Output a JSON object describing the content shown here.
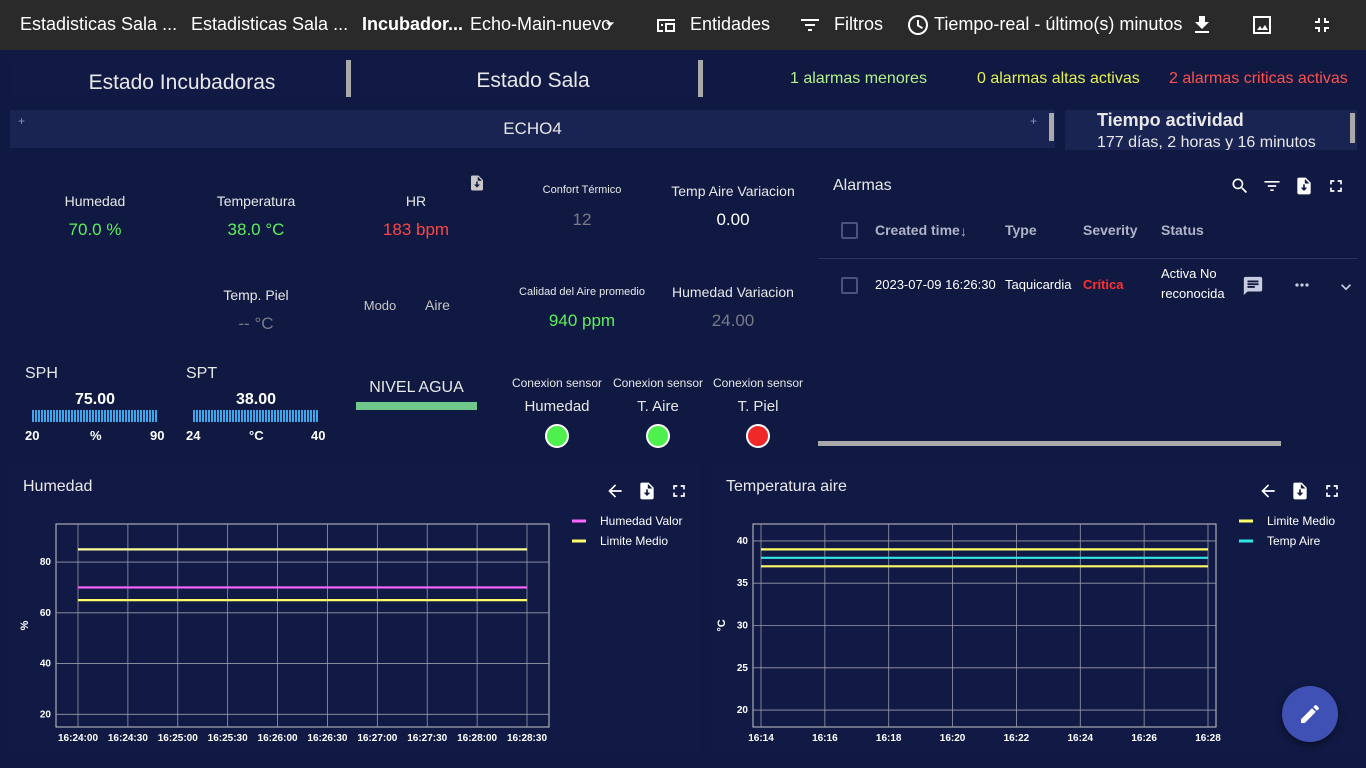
{
  "topbar": {
    "breadcrumbs": [
      "Estadisticas Sala ...",
      "Estadisticas Sala ...",
      "Incubador..."
    ],
    "state_selector": "Echo-Main-nuevo",
    "entities_label": "Entidades",
    "filters_label": "Filtros",
    "time_label": "Tiempo-real - último(s) minutos"
  },
  "nav": {
    "incubadoras_button": "Estado Incubadoras",
    "sala_button": "Estado Sala"
  },
  "alarm_counts": {
    "minor": "1 alarmas menores",
    "high": "0 alarmas altas activas",
    "critical": "2 alarmas criticas activas",
    "colors": {
      "minor": "#b4f08c",
      "high": "#e6f050",
      "critical": "#ff5050"
    }
  },
  "device": {
    "name": "ECHO4"
  },
  "uptime": {
    "title": "Tiempo actividad",
    "value": "177 días, 2 horas y 16 minutos"
  },
  "metrics": {
    "humedad_label": "Humedad",
    "humedad_value": "70.0 %",
    "temperatura_label": "Temperatura",
    "temperatura_value": "38.0 °C",
    "hr_label": "HR",
    "hr_value": "183 bpm",
    "confort_label": "Confort Térmico",
    "confort_value": "12",
    "temp_aire_var_label": "Temp Aire Variacion",
    "temp_aire_var_value": "0.00",
    "temp_piel_label": "Temp. Piel",
    "temp_piel_value": "-- °C",
    "modo_label": "Modo",
    "modo_value": "Aire",
    "calidad_aire_label": "Calidad del Aire promedio",
    "calidad_aire_value": "940 ppm",
    "humedad_var_label": "Humedad Variacion",
    "humedad_var_value": "24.00"
  },
  "gauges": {
    "sph": {
      "title": "SPH",
      "value": "75.00",
      "min": "20",
      "unit": "%",
      "max": "90"
    },
    "spt": {
      "title": "SPT",
      "value": "38.00",
      "min": "24",
      "unit": "°C",
      "max": "40"
    }
  },
  "water": {
    "label": "NIVEL AGUA",
    "level": 1.0
  },
  "sensors": [
    {
      "title": "Conexion sensor",
      "name": "Humedad",
      "status_color": "#4ef04e"
    },
    {
      "title": "Conexion sensor",
      "name": "T. Aire",
      "status_color": "#4ef04e"
    },
    {
      "title": "Conexion sensor",
      "name": "T. Piel",
      "status_color": "#f02828"
    }
  ],
  "alarms": {
    "title": "Alarmas",
    "columns": [
      "Created time",
      "Type",
      "Severity",
      "Status"
    ],
    "rows": [
      {
        "created": "2023-07-09 16:26:30",
        "type": "Taquicardia",
        "severity": "Crítica",
        "status_line1": "Activa No",
        "status_line2": "reconocida"
      }
    ]
  },
  "chart_data": [
    {
      "type": "line",
      "title": "Humedad",
      "ylabel": "%",
      "x": [
        "16:24:00",
        "16:24:30",
        "16:25:00",
        "16:25:30",
        "16:26:00",
        "16:26:30",
        "16:27:00",
        "16:27:30",
        "16:28:00",
        "16:28:30"
      ],
      "yticks": [
        20,
        40,
        60,
        80
      ],
      "ylim": [
        15,
        95
      ],
      "series": [
        {
          "name": "Humedad Valor",
          "color": "#ff66ff",
          "values": [
            70,
            70,
            70,
            70,
            70,
            70,
            70,
            70,
            70,
            70
          ]
        },
        {
          "name": "Limite Medio",
          "color": "#ffff66",
          "values": [
            65,
            65,
            65,
            65,
            65,
            65,
            65,
            65,
            65,
            65
          ]
        },
        {
          "color": "#ffff99",
          "values": [
            85,
            85,
            85,
            85,
            85,
            85,
            85,
            85,
            85,
            85
          ]
        }
      ],
      "grid": true,
      "legend": "top-right"
    },
    {
      "type": "line",
      "title": "Temperatura aire",
      "ylabel": "°C",
      "x": [
        "16:14",
        "16:16",
        "16:18",
        "16:20",
        "16:22",
        "16:24",
        "16:26",
        "16:28"
      ],
      "yticks": [
        20,
        25,
        30,
        35,
        40
      ],
      "ylim": [
        18,
        42
      ],
      "series": [
        {
          "name": "Limite Medio",
          "color": "#ffff66",
          "values": [
            39,
            39,
            39,
            39,
            39,
            39,
            39,
            39
          ]
        },
        {
          "name": "Temp Aire",
          "color": "#33e6e6",
          "values": [
            38,
            38,
            38,
            38,
            38,
            38,
            38,
            38
          ]
        },
        {
          "color": "#ffff66",
          "values": [
            37,
            37,
            37,
            37,
            37,
            37,
            37,
            37
          ]
        }
      ],
      "grid": true,
      "legend": "top-right"
    }
  ]
}
